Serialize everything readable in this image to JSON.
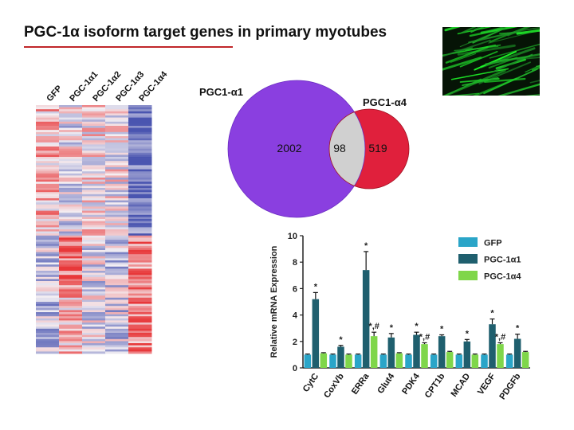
{
  "slide": {
    "title": "PGC-1α isoform target genes in primary  myotubes"
  },
  "heatmap": {
    "columns": [
      "GFP",
      "PGC-1α1",
      "PGC-1α2",
      "PGC-1α3",
      "PGC-1α4"
    ],
    "colors": {
      "high": "#e8383a",
      "low": "#4a55b0",
      "mid": "#f4f0f4"
    }
  },
  "venn": {
    "left_label": "PGC1-α1",
    "right_label": "PGC1-α4",
    "left_only": "2002",
    "overlap": "98",
    "right_only": "519",
    "colors": {
      "left": "#8a3fe0",
      "right": "#e0203c",
      "overlap": "#d0d0d0"
    }
  },
  "chart_data": {
    "type": "bar",
    "ylabel": "Relative mRNA Expression",
    "ylim": [
      0,
      10
    ],
    "yticks": [
      "0",
      "2",
      "4",
      "6",
      "8",
      "10"
    ],
    "categories": [
      "CytC",
      "CoxVb",
      "ERRa",
      "Glut4",
      "PDK4",
      "CPT1b",
      "MCAD",
      "VEGF",
      "PDGFb"
    ],
    "series": [
      {
        "name": "GFP",
        "color": "#2aa5c8",
        "values": [
          1.0,
          1.0,
          1.0,
          1.0,
          1.0,
          1.0,
          1.0,
          1.0,
          1.0
        ],
        "errors": [
          0.05,
          0.05,
          0.05,
          0.05,
          0.05,
          0.05,
          0.05,
          0.05,
          0.05
        ]
      },
      {
        "name": "PGC-1α1",
        "color": "#1f5f6e",
        "values": [
          5.2,
          1.6,
          7.4,
          2.3,
          2.5,
          2.4,
          2.0,
          3.3,
          2.2
        ],
        "errors": [
          0.5,
          0.1,
          1.4,
          0.3,
          0.2,
          0.1,
          0.15,
          0.4,
          0.35
        ]
      },
      {
        "name": "PGC-1α4",
        "color": "#7fd64a",
        "values": [
          1.1,
          1.0,
          2.4,
          1.1,
          1.8,
          1.2,
          1.0,
          1.8,
          1.2
        ],
        "errors": [
          0.05,
          0.05,
          0.3,
          0.05,
          0.1,
          0.05,
          0.05,
          0.1,
          0.05
        ]
      }
    ],
    "annotations": [
      {
        "category": "CytC",
        "series": 1,
        "text": "*"
      },
      {
        "category": "CoxVb",
        "series": 1,
        "text": "*"
      },
      {
        "category": "ERRa",
        "series": 1,
        "text": "*"
      },
      {
        "category": "ERRa",
        "series": 2,
        "text": "*,#"
      },
      {
        "category": "Glut4",
        "series": 1,
        "text": "*"
      },
      {
        "category": "PDK4",
        "series": 1,
        "text": "*"
      },
      {
        "category": "PDK4",
        "series": 2,
        "text": "*,#"
      },
      {
        "category": "CPT1b",
        "series": 1,
        "text": "*"
      },
      {
        "category": "MCAD",
        "series": 1,
        "text": "*"
      },
      {
        "category": "VEGF",
        "series": 1,
        "text": "*"
      },
      {
        "category": "VEGF",
        "series": 2,
        "text": "*,#"
      },
      {
        "category": "PDGFb",
        "series": 1,
        "text": "*"
      }
    ]
  }
}
